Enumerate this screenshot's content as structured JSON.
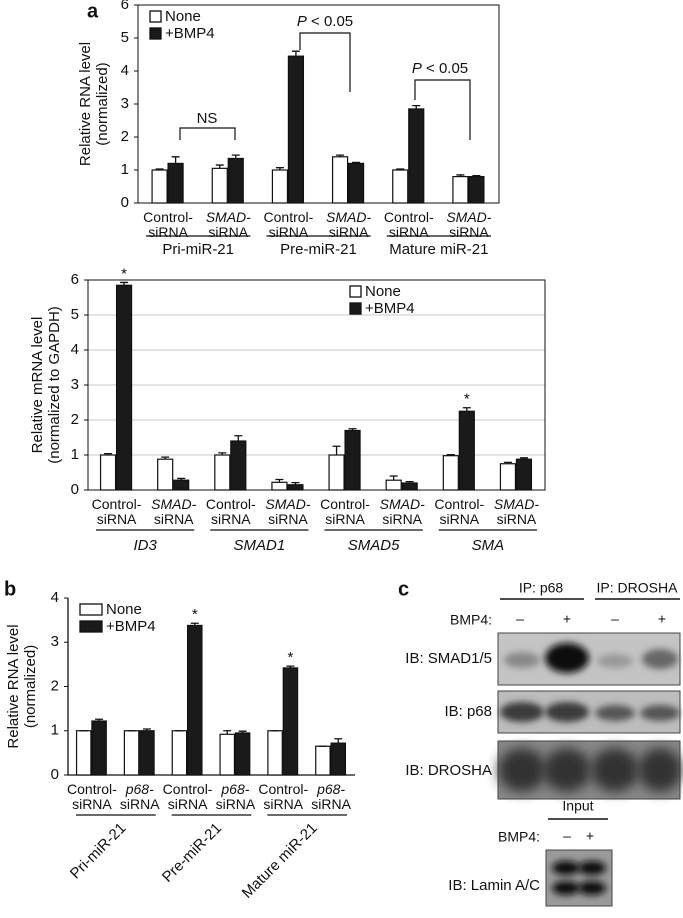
{
  "chart_data": [
    {
      "type": "bar",
      "panel_label": "a",
      "ylabel": [
        "Relative RNA level",
        "(normalized)"
      ],
      "categories": [
        "Control-siRNA",
        "SMAD-siRNA",
        "Control-siRNA",
        "SMAD-siRNA",
        "Control-siRNA",
        "SMAD-siRNA"
      ],
      "category_prefix_italic": [
        false,
        true,
        false,
        true,
        false,
        true
      ],
      "groups": [
        "Pri-miR-21",
        "Pre-miR-21",
        "Mature miR-21"
      ],
      "groups_italic": false,
      "series": [
        {
          "name": "None",
          "color": "#ffffff",
          "values": [
            1.0,
            1.05,
            1.0,
            1.4,
            1.0,
            0.8
          ],
          "errors": [
            0.03,
            0.1,
            0.07,
            0.05,
            0.03,
            0.05
          ]
        },
        {
          "name": "+BMP4",
          "color": "#1a1a1a",
          "values": [
            1.2,
            1.35,
            4.45,
            1.2,
            2.85,
            0.8
          ],
          "errors": [
            0.2,
            0.1,
            0.15,
            0.03,
            0.1,
            0.03
          ]
        }
      ],
      "ylim": [
        0,
        6
      ],
      "yticks": [
        0,
        1,
        2,
        3,
        4,
        5,
        6
      ],
      "grid": false,
      "frame": true,
      "legend": "upper left",
      "annotations": [
        "NS",
        "P < 0.05",
        "P < 0.05"
      ],
      "annotation_italic_first": [
        false,
        true,
        true
      ]
    },
    {
      "type": "bar",
      "ylabel": [
        "Relative mRNA level",
        "(normalized to GAPDH)"
      ],
      "categories": [
        "Control-siRNA",
        "SMAD-siRNA",
        "Control-siRNA",
        "SMAD-siRNA",
        "Control-siRNA",
        "SMAD-siRNA",
        "Control-siRNA",
        "SMAD-siRNA"
      ],
      "category_prefix_italic": [
        false,
        true,
        false,
        true,
        false,
        true,
        false,
        true
      ],
      "groups": [
        "ID3",
        "SMAD1",
        "SMAD5",
        "SMA"
      ],
      "groups_italic": true,
      "series": [
        {
          "name": "None",
          "color": "#ffffff",
          "values": [
            1.0,
            0.88,
            1.0,
            0.22,
            1.0,
            0.28,
            0.98,
            0.75
          ],
          "errors": [
            0.04,
            0.06,
            0.06,
            0.08,
            0.25,
            0.12,
            0.03,
            0.04
          ]
        },
        {
          "name": "+BMP4",
          "color": "#1a1a1a",
          "values": [
            5.85,
            0.28,
            1.4,
            0.15,
            1.7,
            0.2,
            2.25,
            0.88
          ],
          "errors": [
            0.08,
            0.05,
            0.15,
            0.06,
            0.05,
            0.04,
            0.1,
            0.04
          ]
        }
      ],
      "ylim": [
        0,
        6
      ],
      "yticks": [
        0,
        1,
        2,
        3,
        4,
        5,
        6
      ],
      "grid": true,
      "frame": true,
      "legend": "upper right",
      "annotations": [
        "*",
        "*"
      ]
    },
    {
      "type": "bar",
      "panel_label": "b",
      "ylabel": [
        "Relative RNA level",
        "(normalized)"
      ],
      "categories": [
        "Control-siRNA",
        "p68-siRNA",
        "Control-siRNA",
        "p68-siRNA",
        "Control-siRNA",
        "p68-siRNA"
      ],
      "category_prefix_italic": [
        false,
        true,
        false,
        true,
        false,
        true
      ],
      "groups": [
        "Pri-miR-21",
        "Pre-miR-21",
        "Mature miR-21"
      ],
      "groups_italic": false,
      "series": [
        {
          "name": "None",
          "color": "#ffffff",
          "values": [
            1.0,
            1.0,
            1.0,
            0.92,
            1.0,
            0.65
          ],
          "errors": [
            0.0,
            0.0,
            0.0,
            0.08,
            0.0,
            0.0
          ]
        },
        {
          "name": "+BMP4",
          "color": "#1a1a1a",
          "values": [
            1.22,
            1.0,
            3.38,
            0.95,
            2.42,
            0.72
          ],
          "errors": [
            0.04,
            0.04,
            0.05,
            0.04,
            0.04,
            0.1
          ]
        }
      ],
      "ylim": [
        0,
        4
      ],
      "yticks": [
        0,
        1,
        2,
        3,
        4
      ],
      "grid": false,
      "frame": false,
      "legend": "upper left",
      "annotations": [
        "*",
        "*"
      ]
    }
  ],
  "panel_c": {
    "panel_label": "c",
    "ip": [
      "IP: p68",
      "IP: DROSHA"
    ],
    "bmp4": "BMP4:",
    "lane_signs": [
      "–",
      "+",
      "–",
      "+"
    ],
    "blots": [
      "IB: SMAD1/5",
      "IB: p68",
      "IB: DROSHA"
    ],
    "input": "Input",
    "input_bmp4": "BMP4:",
    "input_signs": [
      "–",
      "+"
    ],
    "input_blot": "IB: Lamin A/C"
  }
}
